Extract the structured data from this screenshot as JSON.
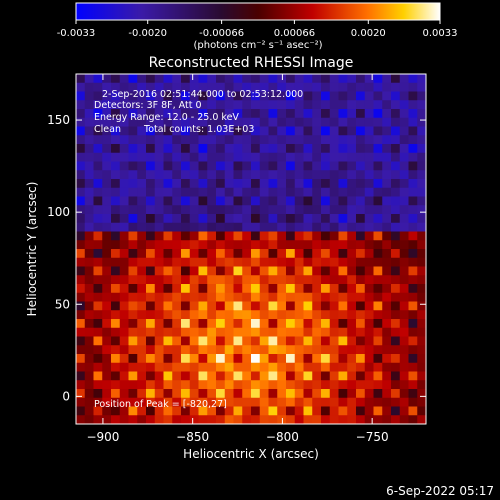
{
  "chart_data": {
    "type": "heatmap",
    "title": "Reconstructed RHESSI Image",
    "xlabel": "Heliocentric X (arcsec)",
    "ylabel": "Heliocentric Y (arcsec)",
    "xlim": [
      -915,
      -720
    ],
    "ylim": [
      -15,
      175
    ],
    "x_ticks": [
      -900,
      -850,
      -800,
      -750
    ],
    "y_ticks": [
      0,
      50,
      100,
      150
    ],
    "colorbar": {
      "colormap": "rhessi-blue-purple-red-yellow-white",
      "range": [
        -0.0033,
        0.0033
      ],
      "ticks": [
        "-0.0033",
        "-0.0020",
        "-0.00066",
        "0.00066",
        "0.0020",
        "0.0033"
      ],
      "unit_label": "(photons cm⁻² s⁻¹ asec⁻²)"
    },
    "peak": {
      "x": -820,
      "y": 27
    },
    "total_counts": 1030,
    "annotations": {
      "time_range": "2-Sep-2016 02:51:44.000 to 02:53:12.000",
      "detectors": "Detectors: 3F 8F, Att 0",
      "energy_range": "Energy Range: 12.0 - 25.0 keV",
      "algorithm": "Clean",
      "total_counts": "Total counts: 1.03E+03",
      "peak_position": "Position of Peak = [-820,27]"
    },
    "grid": false
  },
  "footer_timestamp": "6-Sep-2022 05:17"
}
